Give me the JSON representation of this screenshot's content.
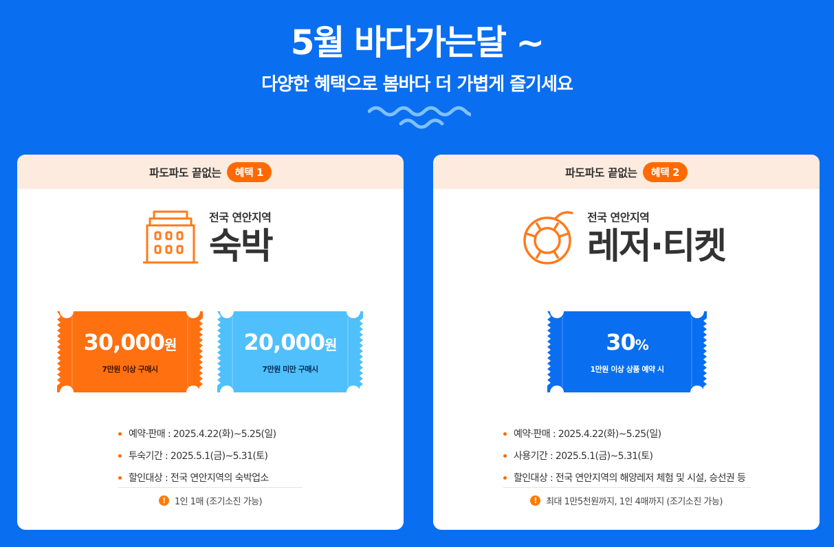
{
  "hero": {
    "title": "5월 바다가는달 ~",
    "subtitle": "다양한 혜택으로 봄바다 더 가볍게 즐기세요"
  },
  "colors": {
    "background": "#0a6ef0",
    "accent_orange": "#ff6a00",
    "coupon_orange": "#ff7010",
    "coupon_sky": "#4fc0fb",
    "coupon_blue": "#0a6ef0",
    "card_header": "#fdebdf"
  },
  "benefits": [
    {
      "header_label": "파도파도 끝없는",
      "badge": "혜택 1",
      "category_sub": "전국 연안지역",
      "category_name": "숙박",
      "icon": "building-icon",
      "coupons": [
        {
          "amount": "30,000",
          "unit": "원",
          "condition": "7만원 이상 구매시",
          "color": "#ff7010"
        },
        {
          "amount": "20,000",
          "unit": "원",
          "condition": "7만원 미만 구매시",
          "color": "#4fc0fb"
        }
      ],
      "info": [
        "예약·판매 : 2025.4.22(화)~5.25(일)",
        "투숙기간 : 2025.5.1(금)~5.31(토)",
        "할인대상 : 전국 연안지역의 숙박업소"
      ],
      "note": "1인 1매 (조기소진 가능)"
    },
    {
      "header_label": "파도파도 끝없는",
      "badge": "혜택 2",
      "category_sub": "전국 연안지역",
      "category_name": "레저·티켓",
      "icon": "lifebuoy-icon",
      "coupons": [
        {
          "amount": "30",
          "unit": "%",
          "condition": "1만원 이상 상품 예약 시",
          "color": "#0a6ef0"
        }
      ],
      "info": [
        "예약·판매 : 2025.4.22(화)~5.25(일)",
        "사용기간 : 2025.5.1(금)~5.31(토)",
        "할인대상 : 전국 연안지역의 해양레저 체험 및 시설, 승선권 등"
      ],
      "note": "최대 1만5천원까지, 1인 4매까지 (조기소진 가능)"
    }
  ]
}
